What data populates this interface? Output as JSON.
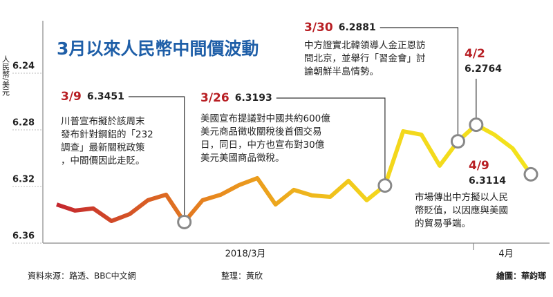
{
  "chart_data": {
    "type": "line",
    "title": "3月以來人民幣中間價波動",
    "y_label": "人民幣/美元",
    "categories": [
      null,
      null,
      null,
      null,
      null,
      null,
      null,
      null,
      null,
      null,
      null,
      null,
      null,
      null,
      null,
      null,
      null,
      null,
      null,
      null,
      null,
      null,
      null,
      null,
      null,
      null,
      null
    ],
    "series": [
      {
        "colors": [
          "#c4262e",
          "#e8891e",
          "#f3d51c",
          "#f3e31c"
        ],
        "values": [
          6.3327,
          6.337,
          6.3355,
          6.3444,
          6.3395,
          6.3297,
          6.3258,
          6.3451,
          6.3297,
          6.3258,
          6.319,
          6.3141,
          6.3327,
          6.3224,
          6.3263,
          6.3273,
          6.316,
          6.3297,
          6.3193,
          6.281,
          6.2834,
          6.3053,
          6.2881,
          6.2764,
          6.2834,
          6.2931,
          6.3114
        ]
      }
    ],
    "ylim": [
      6.36,
      6.22
    ],
    "yticks": [
      6.24,
      6.28,
      6.32,
      6.36
    ],
    "x_labels": [
      "2018/3月",
      "4月"
    ],
    "annotations": [
      {
        "label": "3/9",
        "value": 6.3451,
        "text": [
          "川普宣布擬於該周末",
          "發布針對鋼鋁的「232",
          "調查」最新關稅政策",
          "，中間價因此走貶。"
        ]
      },
      {
        "label": "3/26",
        "value": 6.3193,
        "text": [
          "美國宣布提議對中國共約600億",
          "美元商品徵收關稅後首個交易",
          "日，同日，中方也宣布對30億",
          "美元美國商品徵稅。"
        ]
      },
      {
        "label": "3/30",
        "value": 6.2881,
        "text": [
          "中方證實北韓領導人金正恩訪",
          "問北京，並舉行「習金會」討",
          "論朝鮮半島情勢。"
        ]
      },
      {
        "label": "4/2",
        "value": 6.2764,
        "text": []
      },
      {
        "label": "4/9",
        "value": 6.3114,
        "text": [
          "市場傳出中方擬以人民",
          "幣貶值，以因應與美國",
          "的貿易爭端。"
        ]
      }
    ],
    "source": "資料來源：路透、BBC中文網",
    "editor": "整理：黃欣",
    "artist": "繪圖：華鈞瑯"
  }
}
